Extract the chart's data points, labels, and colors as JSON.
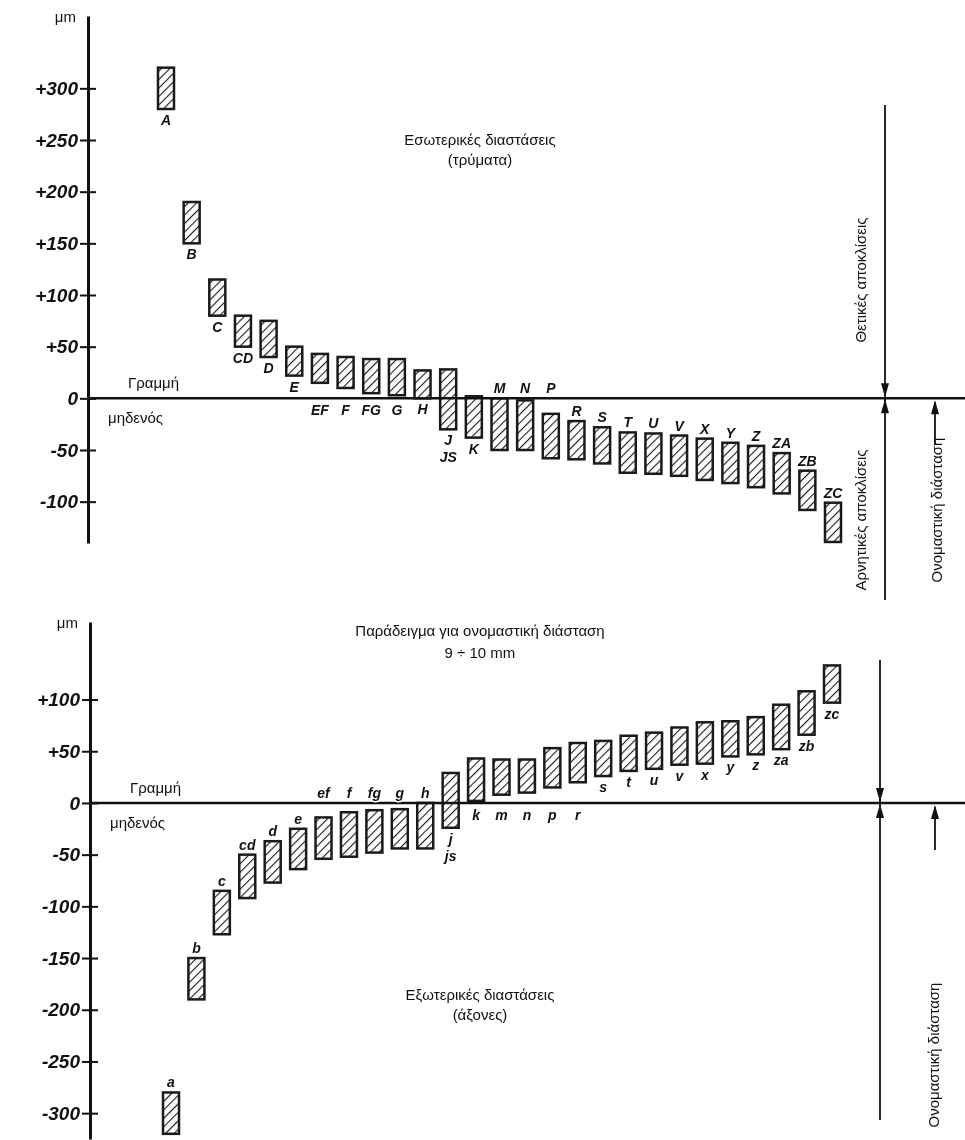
{
  "chart_data": [
    {
      "type": "bar",
      "ylabel": "μm",
      "categories": [
        "A",
        "B",
        "C",
        "CD",
        "D",
        "E",
        "EF",
        "F",
        "FG",
        "G",
        "H",
        "J\nJS",
        "K",
        "M",
        "N",
        "P",
        "R",
        "S",
        "T",
        "U",
        "V",
        "X",
        "Y",
        "Z",
        "ZA",
        "ZB",
        "ZC"
      ],
      "base": [
        280,
        150,
        80,
        50,
        40,
        22,
        15,
        10,
        5,
        3,
        0,
        -30,
        -38,
        -50,
        -50,
        -58,
        -59,
        -63,
        -72,
        -73,
        -75,
        -79,
        -82,
        -86,
        -92,
        -108,
        -139
      ],
      "values": [
        40,
        40,
        35,
        30,
        35,
        28,
        28,
        30,
        33,
        35,
        27,
        58,
        40,
        50,
        48,
        43,
        37,
        35,
        39,
        39,
        39,
        40,
        39,
        40,
        39,
        38,
        38
      ],
      "color": "#1a1a1a",
      "ylim": [
        -140,
        370
      ],
      "yticks": [
        {
          "value": 300,
          "label": "+300"
        },
        {
          "value": 250,
          "label": "+250"
        },
        {
          "value": 200,
          "label": "+200"
        },
        {
          "value": 150,
          "label": "+150"
        },
        {
          "value": 100,
          "label": "+100"
        },
        {
          "value": 50,
          "label": "+50"
        },
        0,
        -50,
        -100
      ],
      "annotations": [
        "Εσωτερικές διαστάσεις\n(τρύματα)",
        "Θετικές αποκλίσεις",
        "Αρνητικές αποκλίσεις",
        "Ονομαστική διάσταση",
        "Γραμμή μηδενός"
      ]
    },
    {
      "type": "bar",
      "title": "Παράδειγμα για ονομαστική διάσταση\n9 ÷ 10 mm",
      "ylabel": "μm",
      "categories": [
        "a",
        "b",
        "c",
        "cd",
        "d",
        "e",
        "ef",
        "f",
        "fg",
        "g",
        "h",
        "j\njs",
        "k",
        "m",
        "n",
        "p",
        "r",
        "s",
        "t",
        "u",
        "v",
        "x",
        "y",
        "z",
        "za",
        "zb",
        "zc"
      ],
      "base": [
        -320,
        -190,
        -127,
        -92,
        -77,
        -64,
        -54,
        -52,
        -48,
        -44,
        -44,
        -24,
        2,
        8,
        10,
        15,
        20,
        26,
        31,
        33,
        37,
        38,
        45,
        47,
        52,
        66,
        97
      ],
      "values": [
        40,
        40,
        42,
        42,
        40,
        39,
        40,
        43,
        41,
        38,
        44,
        53,
        41,
        34,
        32,
        38,
        38,
        34,
        34,
        35,
        36,
        40,
        34,
        36,
        43,
        42,
        36
      ],
      "color": "#1a1a1a",
      "ylim": [
        -325,
        175
      ],
      "yticks": [
        {
          "value": 100,
          "label": "+100"
        },
        {
          "value": 50,
          "label": "+50"
        },
        0,
        -50,
        -100,
        -150,
        -200,
        -250,
        -300
      ],
      "annotations": [
        "Εξωτερικές διαστάσεις\n(άξονες)",
        "Ονομαστική διάσταση",
        "Γραμμή μηδενός"
      ]
    }
  ]
}
